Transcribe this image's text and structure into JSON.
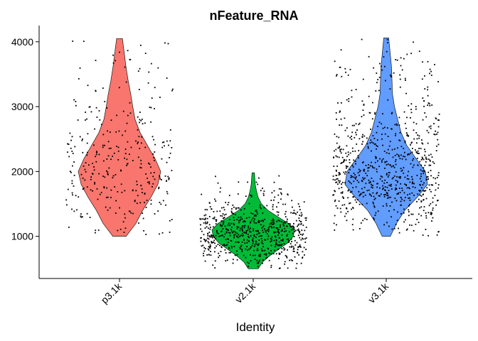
{
  "chart_data": {
    "type": "violin",
    "title": "nFeature_RNA",
    "xlabel": "Identity",
    "ylabel": "",
    "categories": [
      "p3.1k",
      "v2.1k",
      "v3.1k"
    ],
    "colors": [
      "#F8766D",
      "#00BA38",
      "#619CFF"
    ],
    "yticks": [
      1000,
      2000,
      3000,
      4000
    ],
    "ylim": [
      350,
      4250
    ],
    "grid": false,
    "legend": "none",
    "series": [
      {
        "category": "p3.1k",
        "min": 1000,
        "max": 4050,
        "n_points": 330,
        "density": [
          [
            1000,
            0.16
          ],
          [
            1200,
            0.4
          ],
          [
            1400,
            0.56
          ],
          [
            1600,
            0.76
          ],
          [
            1800,
            0.93
          ],
          [
            2000,
            1.0
          ],
          [
            2200,
            0.86
          ],
          [
            2400,
            0.68
          ],
          [
            2600,
            0.5
          ],
          [
            2800,
            0.38
          ],
          [
            3000,
            0.32
          ],
          [
            3200,
            0.27
          ],
          [
            3400,
            0.21
          ],
          [
            3600,
            0.16
          ],
          [
            3800,
            0.12
          ],
          [
            4050,
            0.07
          ]
        ]
      },
      {
        "category": "v2.1k",
        "min": 500,
        "max": 1980,
        "n_points": 700,
        "density": [
          [
            500,
            0.12
          ],
          [
            600,
            0.22
          ],
          [
            700,
            0.4
          ],
          [
            800,
            0.62
          ],
          [
            900,
            0.84
          ],
          [
            1000,
            0.97
          ],
          [
            1100,
            1.0
          ],
          [
            1200,
            0.85
          ],
          [
            1300,
            0.6
          ],
          [
            1400,
            0.36
          ],
          [
            1500,
            0.2
          ],
          [
            1600,
            0.12
          ],
          [
            1700,
            0.08
          ],
          [
            1800,
            0.05
          ],
          [
            1980,
            0.03
          ]
        ]
      },
      {
        "category": "v3.1k",
        "min": 1000,
        "max": 4060,
        "n_points": 800,
        "density": [
          [
            1000,
            0.1
          ],
          [
            1200,
            0.25
          ],
          [
            1400,
            0.45
          ],
          [
            1600,
            0.75
          ],
          [
            1800,
            1.0
          ],
          [
            2000,
            0.95
          ],
          [
            2200,
            0.72
          ],
          [
            2400,
            0.5
          ],
          [
            2600,
            0.36
          ],
          [
            2800,
            0.28
          ],
          [
            3000,
            0.2
          ],
          [
            3200,
            0.15
          ],
          [
            3400,
            0.14
          ],
          [
            3600,
            0.13
          ],
          [
            3800,
            0.1
          ],
          [
            4060,
            0.06
          ]
        ]
      }
    ]
  }
}
